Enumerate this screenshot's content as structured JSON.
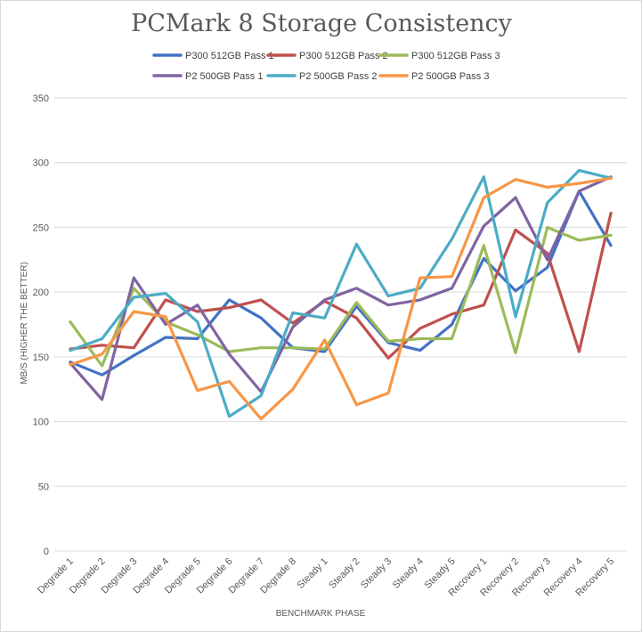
{
  "chart_data": {
    "type": "line",
    "title": "PCMark 8 Storage Consistency",
    "xlabel": "BENCHMARK PHASE",
    "ylabel": "MB/S (HIGHER THE BETTER)",
    "ylim": [
      0,
      350
    ],
    "yticks": [
      0,
      50,
      100,
      150,
      200,
      250,
      300,
      350
    ],
    "grid": true,
    "legend_position": "top",
    "categories": [
      "Degrade 1",
      "Degrade 2",
      "Degrade 3",
      "Degrade 4",
      "Degrade 5",
      "Degrade 6",
      "Degrade 7",
      "Degrade 8",
      "Steady 1",
      "Steady 2",
      "Steady 3",
      "Steady 4",
      "Steady 5",
      "Recovery 1",
      "Recovery 2",
      "Recovery 3",
      "Recovery 4",
      "Recovery 5"
    ],
    "series": [
      {
        "name": "P300 512GB Pass 1",
        "color": "#4472c4",
        "values": [
          146,
          136,
          151,
          165,
          164,
          194,
          180,
          157,
          154,
          189,
          161,
          155,
          175,
          226,
          201,
          219,
          278,
          236
        ]
      },
      {
        "name": "P300 512GB Pass 2",
        "color": "#c0504d",
        "values": [
          156,
          159,
          157,
          194,
          185,
          188,
          194,
          176,
          193,
          180,
          149,
          172,
          183,
          190,
          248,
          230,
          154,
          261
        ]
      },
      {
        "name": "P300 512GB Pass 3",
        "color": "#9bbb59",
        "values": [
          177,
          143,
          203,
          177,
          167,
          154,
          157,
          157,
          156,
          192,
          162,
          164,
          164,
          236,
          153,
          250,
          240,
          244
        ]
      },
      {
        "name": "P2 500GB Pass 1",
        "color": "#8064a2",
        "values": [
          145,
          117,
          211,
          175,
          190,
          152,
          123,
          173,
          194,
          203,
          190,
          194,
          203,
          251,
          273,
          225,
          278,
          289
        ]
      },
      {
        "name": "P2 500GB Pass 2",
        "color": "#4bacc6",
        "values": [
          155,
          164,
          196,
          199,
          177,
          104,
          120,
          184,
          180,
          237,
          197,
          203,
          241,
          289,
          181,
          269,
          294,
          288
        ]
      },
      {
        "name": "P2 500GB Pass 3",
        "color": "#f79646",
        "values": [
          144,
          152,
          185,
          181,
          124,
          131,
          102,
          125,
          163,
          113,
          122,
          211,
          212,
          273,
          287,
          281,
          284,
          288
        ]
      }
    ]
  }
}
